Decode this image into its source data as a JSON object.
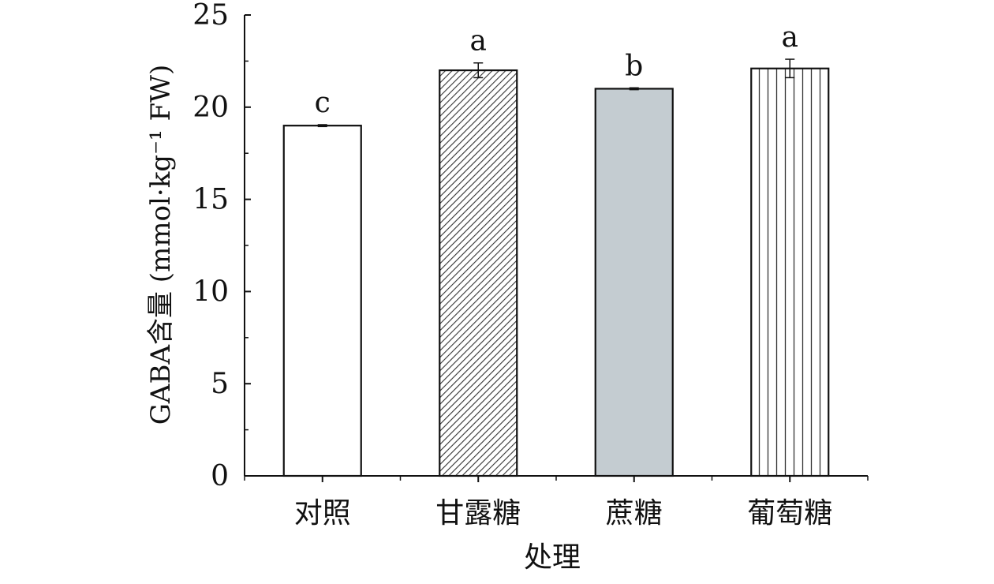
{
  "chart_data": {
    "type": "bar",
    "title": "",
    "xlabel": "处理",
    "ylabel": "GABA含量 (mmol·kg⁻¹ FW)",
    "ylim": [
      0,
      25
    ],
    "yticks": [
      0,
      5,
      10,
      15,
      20,
      25
    ],
    "categories": [
      "对照",
      "甘露糖",
      "蔗糖",
      "葡萄糖"
    ],
    "values": [
      19.0,
      22.0,
      21.0,
      22.1
    ],
    "errors": [
      0.05,
      0.4,
      0.05,
      0.5
    ],
    "significance": [
      "c",
      "a",
      "b",
      "a"
    ],
    "fills": [
      "plain-white",
      "diagonal-hatch",
      "solid-gray",
      "vertical-lines"
    ],
    "colors": {
      "bar_outline": "#111111",
      "gray_fill": "#c4ccd1"
    },
    "grid": false,
    "legend": "none"
  }
}
